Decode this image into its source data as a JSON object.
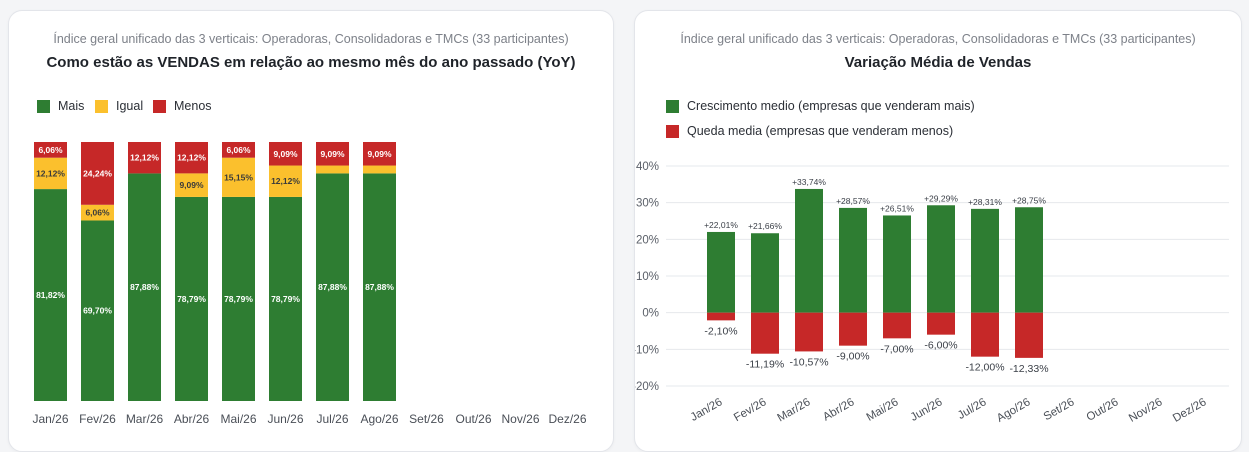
{
  "colors": {
    "green": "#2e7d32",
    "yellow": "#fbc02d",
    "red": "#c62828",
    "grid": "#e6e8ec",
    "axis_text": "#4a4f57"
  },
  "left": {
    "subtitle": "Índice geral unificado das 3 verticais: Operadoras, Consolidadoras e TMCs (33 participantes)",
    "title": "Como estão as VENDAS em relação ao mesmo mês do ano passado (YoY)",
    "legend": [
      "Mais",
      "Igual",
      "Menos"
    ]
  },
  "right": {
    "subtitle": "Índice geral unificado das 3 verticais: Operadoras, Consolidadoras e TMCs (33 participantes)",
    "title": "Variação Média de Vendas",
    "legend": [
      "Crescimento medio (empresas que venderam mais)",
      "Queda media (empresas que venderam menos)"
    ]
  },
  "chart_data": [
    {
      "type": "bar",
      "stacked": true,
      "percent_stacked": true,
      "categories": [
        "Jan/26",
        "Fev/26",
        "Mar/26",
        "Abr/26",
        "Mai/26",
        "Jun/26",
        "Jul/26",
        "Ago/26",
        "Set/26",
        "Out/26",
        "Nov/26",
        "Dez/26"
      ],
      "series": [
        {
          "name": "Mais",
          "color": "#2e7d32",
          "values": [
            81.82,
            69.7,
            87.88,
            78.79,
            78.79,
            78.79,
            87.88,
            87.88,
            null,
            null,
            null,
            null
          ],
          "labels": [
            "81,82%",
            "69,70%",
            "87,88%",
            "78,79%",
            "78,79%",
            "78,79%",
            "87,88%",
            "87,88%",
            "",
            "",
            "",
            ""
          ]
        },
        {
          "name": "Igual",
          "color": "#fbc02d",
          "values": [
            12.12,
            6.06,
            0,
            9.09,
            15.15,
            12.12,
            3.03,
            3.03,
            null,
            null,
            null,
            null
          ],
          "labels": [
            "12,12%",
            "6,06%",
            "",
            "9,09%",
            "15,15%",
            "12,12%",
            "",
            "",
            "",
            "",
            "",
            ""
          ]
        },
        {
          "name": "Menos",
          "color": "#c62828",
          "values": [
            6.06,
            24.24,
            12.12,
            12.12,
            6.06,
            9.09,
            9.09,
            9.09,
            null,
            null,
            null,
            null
          ],
          "labels": [
            "6,06%",
            "24,24%",
            "12,12%",
            "12,12%",
            "6,06%",
            "9,09%",
            "9,09%",
            "9,09%",
            "",
            "",
            "",
            ""
          ]
        }
      ],
      "ylim": [
        0,
        100
      ],
      "legend_position": "top-left"
    },
    {
      "type": "bar",
      "categories": [
        "Jan/26",
        "Fev/26",
        "Mar/26",
        "Abr/26",
        "Mai/26",
        "Jun/26",
        "Jul/26",
        "Ago/26",
        "Set/26",
        "Out/26",
        "Nov/26",
        "Dez/26"
      ],
      "series": [
        {
          "name": "Crescimento medio (empresas que venderam mais)",
          "color": "#2e7d32",
          "values": [
            22.01,
            21.66,
            33.74,
            28.57,
            26.51,
            29.29,
            28.31,
            28.75,
            null,
            null,
            null,
            null
          ],
          "labels": [
            "+22,01%",
            "+21,66%",
            "+33,74%",
            "+28,57%",
            "+26,51%",
            "+29,29%",
            "+28,31%",
            "+28,75%",
            "",
            "",
            "",
            ""
          ]
        },
        {
          "name": "Queda media (empresas que venderam menos)",
          "color": "#c62828",
          "values": [
            -2.1,
            -11.19,
            -10.57,
            -9.0,
            -7.0,
            -6.0,
            -12.0,
            -12.33,
            null,
            null,
            null,
            null
          ],
          "labels": [
            "-2,10%",
            "-11,19%",
            "-10,57%",
            "-9,00%",
            "-7,00%",
            "-6,00%",
            "-12,00%",
            "-12,33%",
            "",
            "",
            "",
            ""
          ]
        }
      ],
      "ylim": [
        -20,
        40
      ],
      "yticks": [
        40,
        30,
        20,
        10,
        0,
        -10,
        -20
      ],
      "ytick_labels": [
        "40%",
        "30%",
        "20%",
        "10%",
        "0%",
        "-10%",
        "-20%"
      ],
      "grid": true,
      "legend_position": "top-left"
    }
  ]
}
